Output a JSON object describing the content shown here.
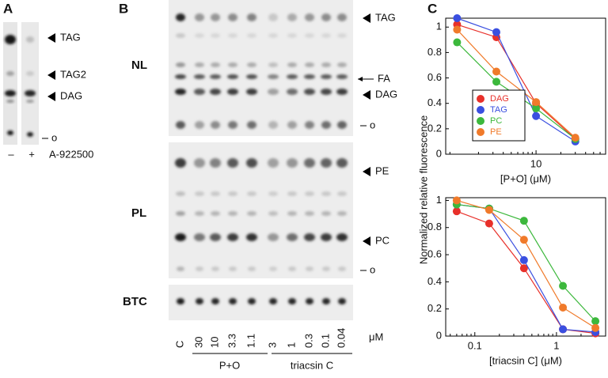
{
  "panel_a": {
    "label": "A",
    "bands": [
      "TAG",
      "TAG2",
      "DAG",
      "o"
    ],
    "lanes": [
      "–",
      "+"
    ],
    "treatment": "A-922500"
  },
  "panel_b": {
    "label": "B",
    "sections": [
      "NL",
      "PL",
      "BTC"
    ],
    "bands": [
      "TAG",
      "FA",
      "DAG",
      "o",
      "PE",
      "PC",
      "o"
    ],
    "lanes": [
      "C",
      "30",
      "10",
      "3.3",
      "1.1",
      "3",
      "1",
      "0.3",
      "0.1",
      "0.04"
    ],
    "unit": "μM",
    "groups": [
      "P+O",
      "triacsin C"
    ]
  },
  "panel_c": {
    "label": "C",
    "y_label": "Normalized relative fluorescence"
  },
  "chart_data": [
    {
      "type": "scatter",
      "x_label": "[P+O] (μM)",
      "log_x": true,
      "xlim": [
        0.8,
        70
      ],
      "xticks": [
        10
      ],
      "ylim": [
        0,
        1.07
      ],
      "yticks": [
        0,
        0.2,
        0.4,
        0.6,
        0.8,
        1
      ],
      "legend": "lower left",
      "x": [
        1.1,
        3.3,
        10,
        30
      ],
      "series": [
        {
          "name": "DAG",
          "color": "#e8302a",
          "values": [
            1.02,
            0.92,
            0.4,
            0.12
          ]
        },
        {
          "name": "TAG",
          "color": "#3a4fe0",
          "values": [
            1.07,
            0.96,
            0.3,
            0.1
          ]
        },
        {
          "name": "PC",
          "color": "#3cb83c",
          "values": [
            0.88,
            0.57,
            0.36,
            0.12
          ]
        },
        {
          "name": "PE",
          "color": "#f07a2a",
          "values": [
            0.98,
            0.65,
            0.41,
            0.13
          ]
        }
      ]
    },
    {
      "type": "scatter",
      "x_label": "[triacsin C] (μM)",
      "log_x": true,
      "xlim": [
        0.044,
        4
      ],
      "xticks": [
        0.1,
        1
      ],
      "ylim": [
        0,
        1.02
      ],
      "yticks": [
        0,
        0.2,
        0.4,
        0.6,
        0.8,
        1
      ],
      "x": [
        0.06,
        0.15,
        0.4,
        1.2,
        3
      ],
      "series": [
        {
          "name": "DAG",
          "color": "#e8302a",
          "values": [
            0.92,
            0.83,
            0.5,
            0.05,
            0.02
          ]
        },
        {
          "name": "TAG",
          "color": "#3a4fe0",
          "values": [
            0.97,
            0.94,
            0.56,
            0.05,
            0.03
          ]
        },
        {
          "name": "PC",
          "color": "#3cb83c",
          "values": [
            0.97,
            0.94,
            0.85,
            0.37,
            0.11
          ]
        },
        {
          "name": "PE",
          "color": "#f07a2a",
          "values": [
            1.0,
            0.93,
            0.71,
            0.21,
            0.06
          ]
        }
      ]
    }
  ]
}
